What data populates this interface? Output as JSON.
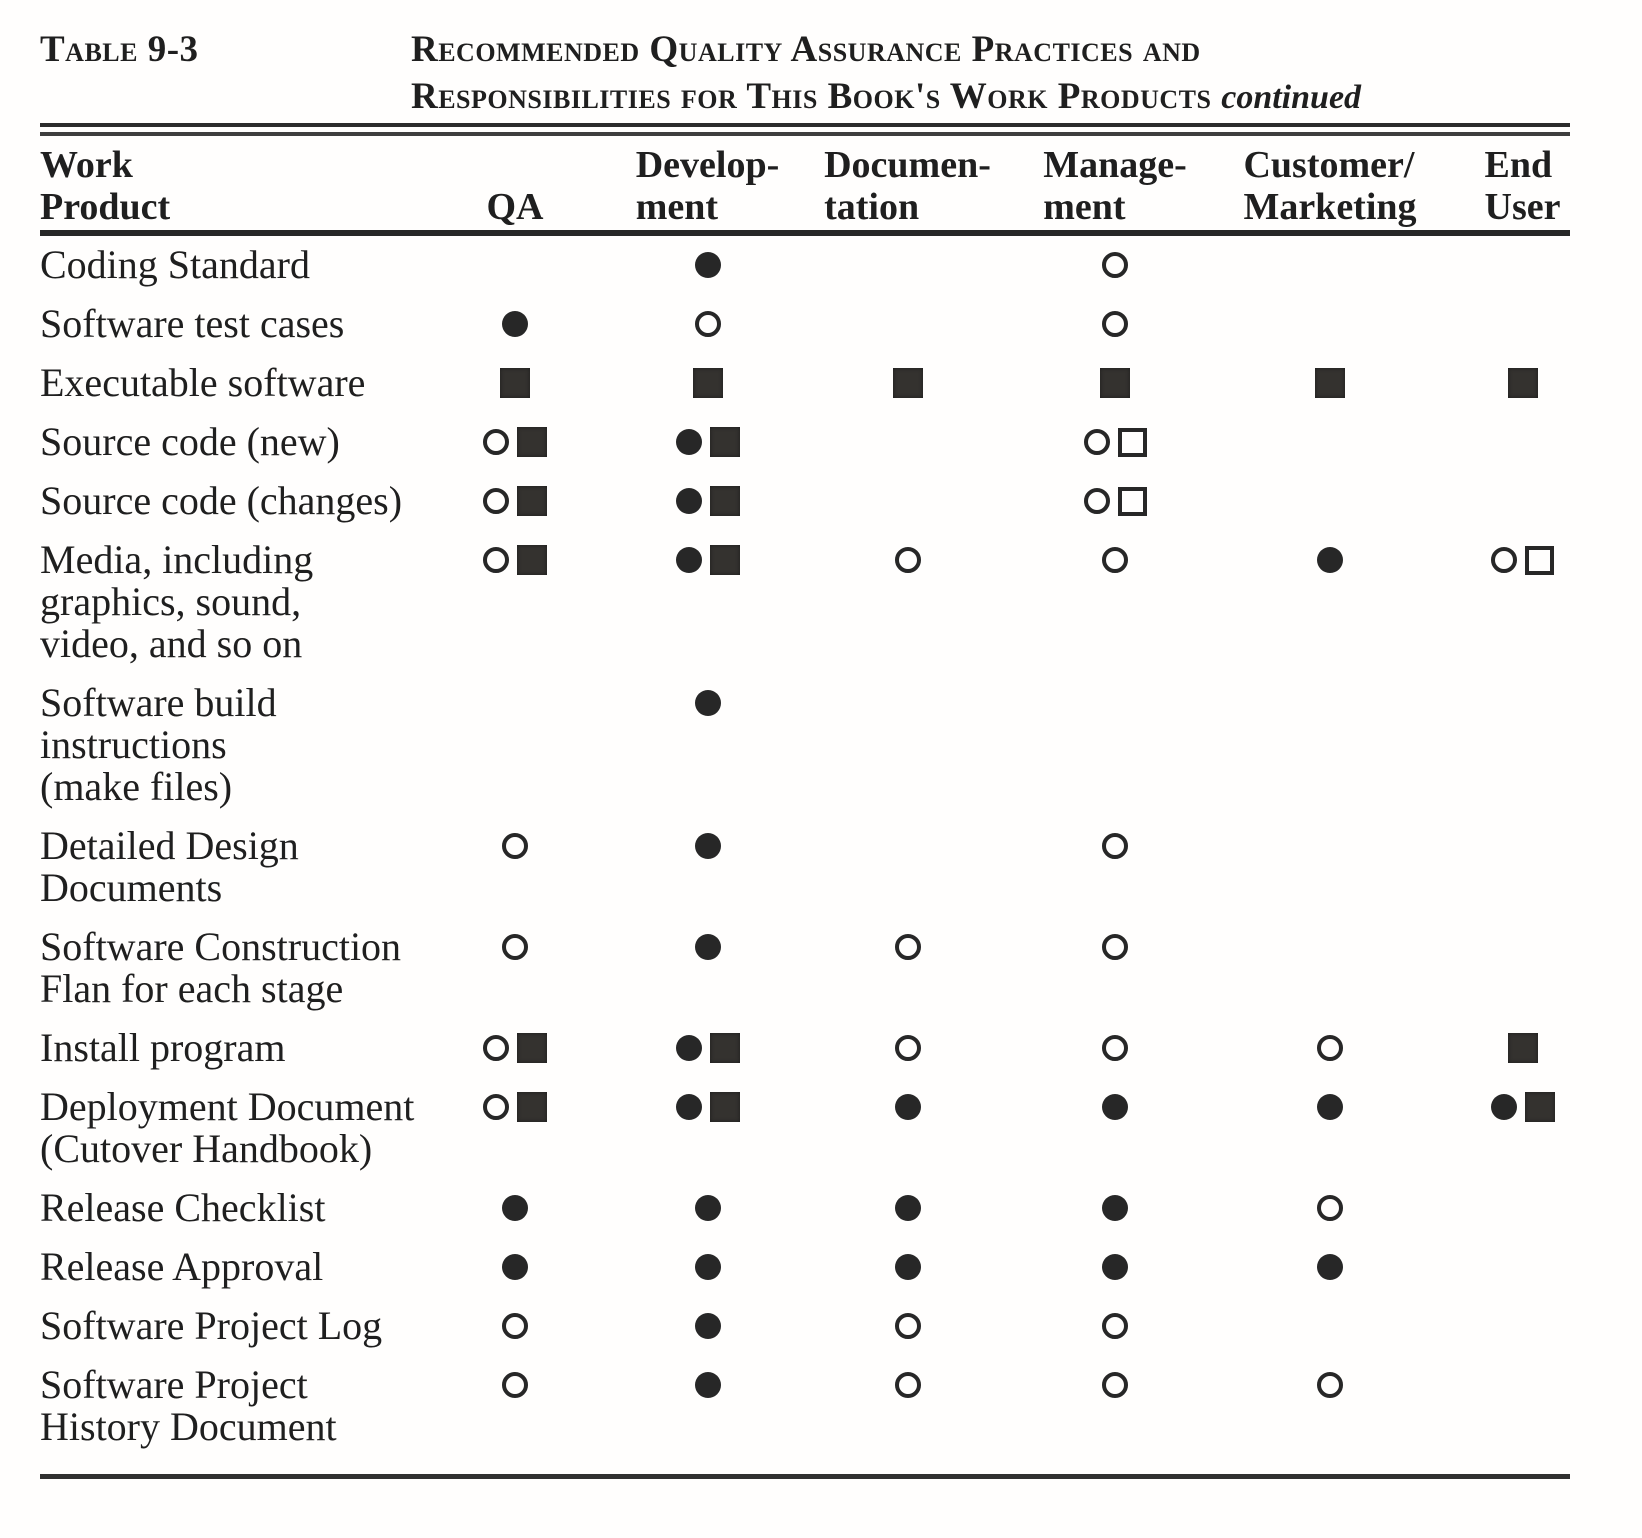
{
  "theme": {
    "ink": "#1f1f1f",
    "paper": "#fffefd"
  },
  "title": {
    "label": "Table 9-3",
    "line1": "Recommended Quality Assurance Practices and",
    "line2": "Responsibilities for This Book's Work Products",
    "continued": "continued"
  },
  "header": {
    "keys": [
      "qa",
      "development",
      "documentation",
      "management",
      "customer-marketing",
      "end-user"
    ],
    "columns": [
      {
        "line1": "Work",
        "line2": "Product"
      },
      {
        "line1": "",
        "line2": "QA"
      },
      {
        "line1": "Develop-",
        "line2": "ment"
      },
      {
        "line1": "Documen-",
        "line2": "tation"
      },
      {
        "line1": "Manage-",
        "line2": "ment"
      },
      {
        "line1": "Customer/",
        "line2": "Marketing"
      },
      {
        "line1": "End",
        "line2": "User"
      }
    ]
  },
  "symbols_legend": {
    "fc": "filled-circle",
    "oc": "open-circle",
    "fs": "filled-square",
    "os": "open-square"
  },
  "rows": [
    {
      "label_lines": [
        "Coding Standard"
      ],
      "cells": [
        [],
        [
          "fc"
        ],
        [],
        [
          "oc"
        ],
        [],
        []
      ]
    },
    {
      "label_lines": [
        "Software test cases"
      ],
      "cells": [
        [
          "fc"
        ],
        [
          "oc"
        ],
        [],
        [
          "oc"
        ],
        [],
        []
      ]
    },
    {
      "label_lines": [
        "Executable software"
      ],
      "cells": [
        [
          "fs"
        ],
        [
          "fs"
        ],
        [
          "fs"
        ],
        [
          "fs"
        ],
        [
          "fs"
        ],
        [
          "fs"
        ]
      ]
    },
    {
      "label_lines": [
        "Source code (new)"
      ],
      "cells": [
        [
          "oc",
          "fs"
        ],
        [
          "fc",
          "fs"
        ],
        [],
        [
          "oc",
          "os"
        ],
        [],
        []
      ]
    },
    {
      "label_lines": [
        "Source code (changes)"
      ],
      "cells": [
        [
          "oc",
          "fs"
        ],
        [
          "fc",
          "fs"
        ],
        [],
        [
          "oc",
          "os"
        ],
        [],
        []
      ]
    },
    {
      "label_lines": [
        "Media, including",
        "graphics, sound,",
        "video, and so on"
      ],
      "cells": [
        [
          "oc",
          "fs"
        ],
        [
          "fc",
          "fs"
        ],
        [
          "oc"
        ],
        [
          "oc"
        ],
        [
          "fc"
        ],
        [
          "oc",
          "os"
        ]
      ]
    },
    {
      "label_lines": [
        "Software build",
        "instructions",
        "(make files)"
      ],
      "cells": [
        [],
        [
          "fc"
        ],
        [],
        [],
        [],
        []
      ]
    },
    {
      "label_lines": [
        "Detailed Design",
        "Documents"
      ],
      "cells": [
        [
          "oc"
        ],
        [
          "fc"
        ],
        [],
        [
          "oc"
        ],
        [],
        []
      ]
    },
    {
      "label_lines": [
        "Software Construction",
        "Flan for each stage"
      ],
      "cells": [
        [
          "oc"
        ],
        [
          "fc"
        ],
        [
          "oc"
        ],
        [
          "oc"
        ],
        [],
        []
      ]
    },
    {
      "label_lines": [
        "Install program"
      ],
      "cells": [
        [
          "oc",
          "fs"
        ],
        [
          "fc",
          "fs"
        ],
        [
          "oc"
        ],
        [
          "oc"
        ],
        [
          "oc"
        ],
        [
          "fs"
        ]
      ]
    },
    {
      "label_lines": [
        "Deployment Document",
        "(Cutover Handbook)"
      ],
      "cells": [
        [
          "oc",
          "fs"
        ],
        [
          "fc",
          "fs"
        ],
        [
          "fc"
        ],
        [
          "fc"
        ],
        [
          "fc"
        ],
        [
          "fc",
          "fs"
        ]
      ]
    },
    {
      "label_lines": [
        "Release Checklist"
      ],
      "cells": [
        [
          "fc"
        ],
        [
          "fc"
        ],
        [
          "fc"
        ],
        [
          "fc"
        ],
        [
          "oc"
        ],
        []
      ]
    },
    {
      "label_lines": [
        "Release Approval"
      ],
      "cells": [
        [
          "fc"
        ],
        [
          "fc"
        ],
        [
          "fc"
        ],
        [
          "fc"
        ],
        [
          "fc"
        ],
        []
      ]
    },
    {
      "label_lines": [
        "Software Project Log"
      ],
      "cells": [
        [
          "oc"
        ],
        [
          "fc"
        ],
        [
          "oc"
        ],
        [
          "oc"
        ],
        [],
        []
      ]
    },
    {
      "label_lines": [
        "Software Project",
        "History Document"
      ],
      "cells": [
        [
          "oc"
        ],
        [
          "fc"
        ],
        [
          "oc"
        ],
        [
          "oc"
        ],
        [
          "oc"
        ],
        []
      ]
    }
  ]
}
